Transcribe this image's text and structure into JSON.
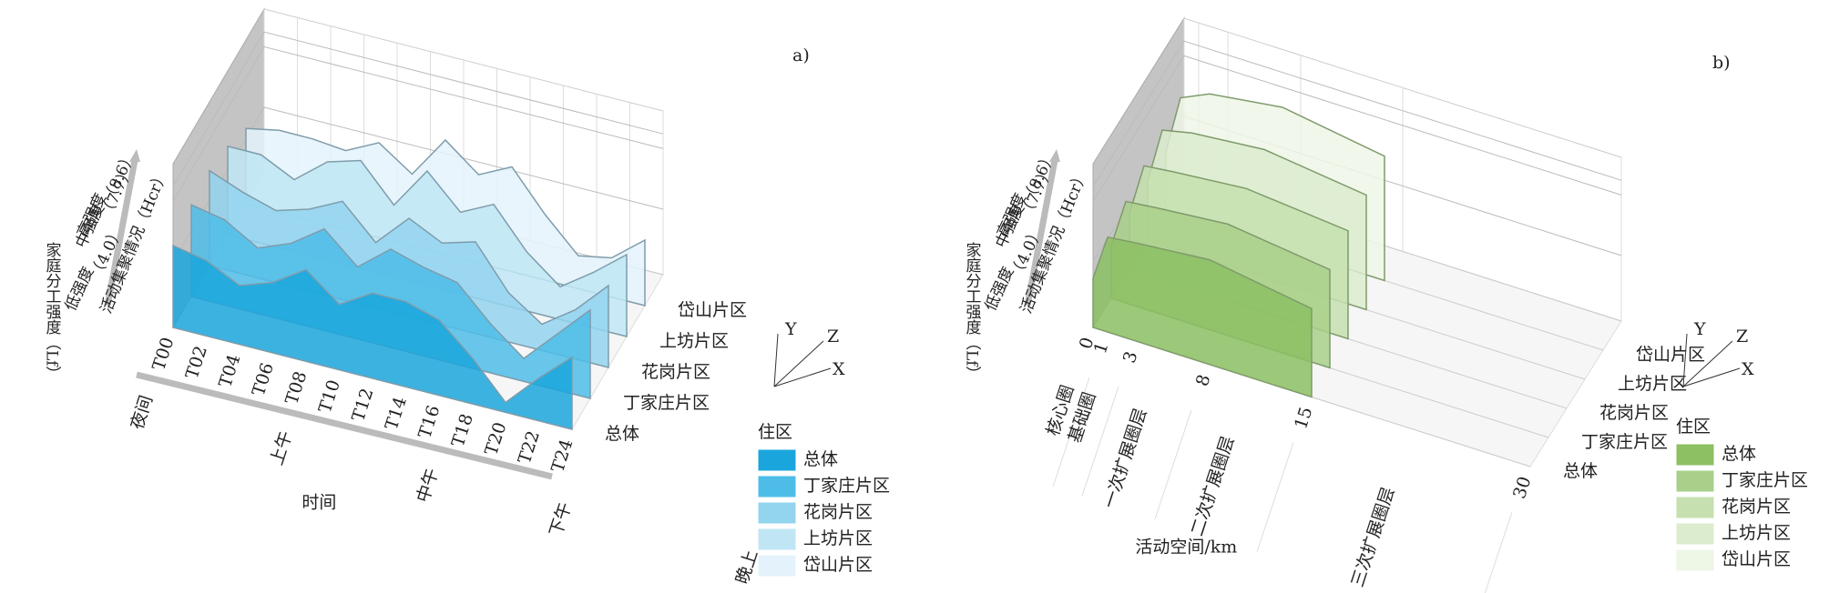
{
  "chart_data": [
    {
      "type": "area3d",
      "panel_label": "a)",
      "categories": [
        "T00",
        "T02",
        "T04",
        "T06",
        "T08",
        "T10",
        "T12",
        "T14",
        "T16",
        "T18",
        "T20",
        "T22",
        "T24"
      ],
      "period_labels": [
        "夜间",
        "上午",
        "中午",
        "下午",
        "晚上"
      ],
      "xlabel": "时间",
      "ylabel": "活动集聚情况（Hcr）",
      "ylabel_outer": "家庭分工强度（Lf）",
      "y_levels": [
        "低强度",
        "中强度",
        "高强度"
      ],
      "ylim": [
        0,
        10
      ],
      "yticks": [
        {
          "value": 4.0,
          "label": "（4.0）"
        },
        {
          "value": 7.7,
          "label": "（7.7）"
        },
        {
          "value": 8.6,
          "label": "（8.6）"
        }
      ],
      "legend_title": "住区",
      "axis_icon": [
        "Y",
        "Z",
        "X"
      ],
      "series": [
        {
          "name": "总体",
          "color": "#1aa6dc",
          "values": [
            5,
            4.6,
            3.6,
            4.3,
            5.6,
            4,
            5.2,
            5.2,
            4.6,
            2.8,
            0.6,
            2.6,
            4.4
          ]
        },
        {
          "name": "丁家庄片区",
          "color": "#4dbde8",
          "values": [
            5.6,
            5.2,
            4,
            4.8,
            6.2,
            4.4,
            6,
            5.4,
            5,
            3,
            1.4,
            3.4,
            5.4
          ]
        },
        {
          "name": "花岗片区",
          "color": "#93d4ee",
          "values": [
            5.8,
            5,
            4.4,
            5,
            6,
            4,
            6,
            5,
            5.6,
            3,
            1.6,
            3,
            5
          ]
        },
        {
          "name": "上坊片区",
          "color": "#c0e6f5",
          "values": [
            5.4,
            5.4,
            4.4,
            6,
            6.6,
            4.4,
            7,
            5,
            6,
            3.6,
            2,
            3.4,
            5
          ]
        },
        {
          "name": "岱山片区",
          "color": "#e4f3fb",
          "values": [
            4.6,
            5,
            5,
            4.8,
            5.8,
            4.4,
            7,
            5.4,
            6.4,
            4,
            2,
            2.4,
            4
          ]
        }
      ]
    },
    {
      "type": "area3d",
      "panel_label": "b)",
      "x": [
        0,
        1,
        3,
        8,
        15
      ],
      "xlim": [
        0,
        30
      ],
      "xticks": [
        0,
        1,
        3,
        8,
        15,
        30
      ],
      "zone_labels": [
        "核心圈",
        "基础圈",
        "一次扩展圈层",
        "二次扩展圈层",
        "三次扩展圈层"
      ],
      "xlabel": "活动空间/km",
      "ylabel": "活动集聚情况（Hcr）",
      "ylabel_outer": "家庭分工强度（Lf）",
      "y_levels": [
        "低强度",
        "中强度",
        "高强度"
      ],
      "ylim": [
        0,
        10
      ],
      "yticks": [
        {
          "value": 4.0,
          "label": "（4.0）"
        },
        {
          "value": 7.7,
          "label": "（7.7）"
        },
        {
          "value": 8.6,
          "label": "（8.6）"
        }
      ],
      "legend_title": "住区",
      "axis_icon": [
        "Y",
        "Z",
        "X"
      ],
      "series": [
        {
          "name": "总体",
          "color": "#8cc063",
          "values": [
            3,
            5.8,
            6,
            6.4,
            5.4
          ]
        },
        {
          "name": "丁家庄片区",
          "color": "#a9d08a",
          "values": [
            3.2,
            6.2,
            6.4,
            6.8,
            6
          ]
        },
        {
          "name": "花岗片区",
          "color": "#c6e0af",
          "values": [
            3.4,
            6.6,
            6.8,
            7.2,
            6.6
          ]
        },
        {
          "name": "上坊片区",
          "color": "#dcecce",
          "values": [
            3.6,
            7,
            7.4,
            7.8,
            7
          ]
        },
        {
          "name": "岱山片区",
          "color": "#eef6e6",
          "values": [
            3.6,
            7.2,
            8,
            8.6,
            7.6
          ]
        }
      ]
    }
  ]
}
